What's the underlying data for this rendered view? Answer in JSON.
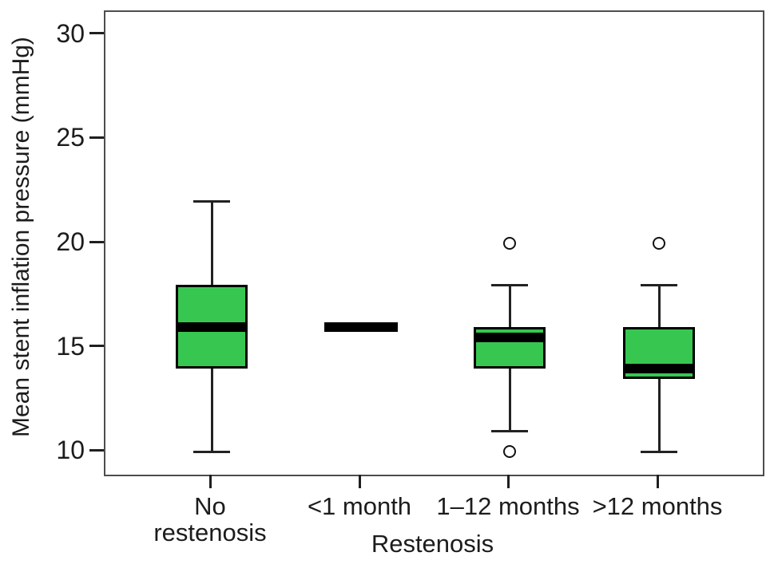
{
  "chart_data": {
    "type": "box",
    "title": "",
    "xlabel": "Restenosis",
    "ylabel": "Mean stent inflation pressure (mmHg)",
    "ylim": [
      8.9,
      31.1
    ],
    "yticks": [
      10,
      15,
      20,
      25,
      30
    ],
    "grid": false,
    "legend": "none",
    "categories": [
      "No\nrestenosis",
      "<1 month",
      "1–12 months",
      ">12 months"
    ],
    "boxes": [
      {
        "label": "No restenosis",
        "whisker_low": 10,
        "q1": 14,
        "median": 16,
        "q3": 18,
        "whisker_high": 22,
        "outliers": [],
        "median_only": false
      },
      {
        "label": "<1 month",
        "whisker_low": 16,
        "q1": 16,
        "median": 16,
        "q3": 16,
        "whisker_high": 16,
        "outliers": [],
        "median_only": true
      },
      {
        "label": "1–12 months",
        "whisker_low": 11,
        "q1": 14,
        "median": 15.5,
        "q3": 16,
        "whisker_high": 18,
        "outliers": [
          20,
          10
        ],
        "median_only": false
      },
      {
        "label": ">12 months",
        "whisker_low": 10,
        "q1": 13.5,
        "median": 14,
        "q3": 16,
        "whisker_high": 18,
        "outliers": [
          20
        ],
        "median_only": false
      }
    ],
    "colors": {
      "box_fill": "#37c750",
      "box_border": "#000000",
      "median": "#000000",
      "whisker": "#222222",
      "frame": "#4d4d4d",
      "text": "#1c1c1c",
      "background": "#ffffff"
    }
  }
}
